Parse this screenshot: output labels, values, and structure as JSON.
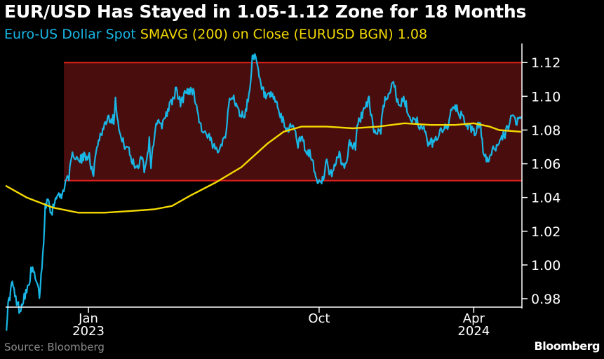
{
  "title": "EUR/USD Has Stayed in 1.05-1.12 Zone for 18 Months",
  "legend": {
    "series1": "Euro-US Dollar Spot",
    "series2": "SMAVG (200) on Close (EURUSD BGN) 1.08"
  },
  "source": "Source: Bloomberg",
  "brand": "Bloomberg",
  "colors": {
    "background": "#000000",
    "spot": "#19b7e6",
    "sma": "#f4d900",
    "band_fill": "#4a0d0d",
    "band_line": "#e0201c",
    "text": "#ffffff"
  },
  "chart_data": {
    "type": "line",
    "ylim": [
      0.975,
      1.128
    ],
    "yticks": [
      0.98,
      1.0,
      1.02,
      1.04,
      1.06,
      1.08,
      1.1,
      1.12
    ],
    "ytick_labels": [
      "0.98",
      "1.00",
      "1.02",
      "1.04",
      "1.06",
      "1.08",
      "1.10",
      "1.12"
    ],
    "xlim": [
      "2022-09-25",
      "2024-05-28"
    ],
    "xticks": [
      {
        "date": "2023-01-01",
        "label": "Jan",
        "label2": "2023"
      },
      {
        "date": "2023-10-01",
        "label": "Oct",
        "label2": ""
      },
      {
        "date": "2024-04-01",
        "label": "Apr",
        "label2": "2024"
      }
    ],
    "band": {
      "low": 1.05,
      "high": 1.12
    },
    "series": [
      {
        "key": "spot",
        "points": [
          [
            "2022-09-26",
            0.964
          ],
          [
            "2022-09-28",
            0.976
          ],
          [
            "2022-10-03",
            0.99
          ],
          [
            "2022-10-06",
            0.981
          ],
          [
            "2022-10-12",
            0.973
          ],
          [
            "2022-10-17",
            0.982
          ],
          [
            "2022-10-21",
            0.985
          ],
          [
            "2022-10-25",
            0.996
          ],
          [
            "2022-10-28",
            0.996
          ],
          [
            "2022-11-01",
            0.988
          ],
          [
            "2022-11-04",
            0.982
          ],
          [
            "2022-11-08",
            1.005
          ],
          [
            "2022-11-11",
            1.035
          ],
          [
            "2022-11-15",
            1.041
          ],
          [
            "2022-11-18",
            1.03
          ],
          [
            "2022-11-24",
            1.042
          ],
          [
            "2022-11-30",
            1.04
          ],
          [
            "2022-12-05",
            1.05
          ],
          [
            "2022-12-09",
            1.053
          ],
          [
            "2022-12-14",
            1.067
          ],
          [
            "2022-12-20",
            1.061
          ],
          [
            "2022-12-27",
            1.064
          ],
          [
            "2023-01-02",
            1.066
          ],
          [
            "2023-01-06",
            1.052
          ],
          [
            "2023-01-12",
            1.073
          ],
          [
            "2023-01-17",
            1.079
          ],
          [
            "2023-01-24",
            1.088
          ],
          [
            "2023-01-31",
            1.086
          ],
          [
            "2023-02-02",
            1.1
          ],
          [
            "2023-02-06",
            1.08
          ],
          [
            "2023-02-10",
            1.073
          ],
          [
            "2023-02-16",
            1.07
          ],
          [
            "2023-02-22",
            1.061
          ],
          [
            "2023-02-28",
            1.058
          ],
          [
            "2023-03-06",
            1.066
          ],
          [
            "2023-03-08",
            1.055
          ],
          [
            "2023-03-14",
            1.073
          ],
          [
            "2023-03-16",
            1.06
          ],
          [
            "2023-03-22",
            1.085
          ],
          [
            "2023-03-28",
            1.082
          ],
          [
            "2023-04-03",
            1.09
          ],
          [
            "2023-04-12",
            1.099
          ],
          [
            "2023-04-14",
            1.104
          ],
          [
            "2023-04-20",
            1.096
          ],
          [
            "2023-04-26",
            1.102
          ],
          [
            "2023-05-03",
            1.105
          ],
          [
            "2023-05-09",
            1.096
          ],
          [
            "2023-05-12",
            1.085
          ],
          [
            "2023-05-18",
            1.078
          ],
          [
            "2023-05-24",
            1.075
          ],
          [
            "2023-05-31",
            1.068
          ],
          [
            "2023-06-06",
            1.071
          ],
          [
            "2023-06-12",
            1.077
          ],
          [
            "2023-06-16",
            1.095
          ],
          [
            "2023-06-22",
            1.1
          ],
          [
            "2023-06-28",
            1.09
          ],
          [
            "2023-07-05",
            1.089
          ],
          [
            "2023-07-10",
            1.1
          ],
          [
            "2023-07-14",
            1.123
          ],
          [
            "2023-07-18",
            1.122
          ],
          [
            "2023-07-24",
            1.106
          ],
          [
            "2023-07-31",
            1.098
          ],
          [
            "2023-08-04",
            1.1
          ],
          [
            "2023-08-10",
            1.098
          ],
          [
            "2023-08-17",
            1.087
          ],
          [
            "2023-08-24",
            1.08
          ],
          [
            "2023-08-31",
            1.084
          ],
          [
            "2023-09-06",
            1.072
          ],
          [
            "2023-09-12",
            1.075
          ],
          [
            "2023-09-15",
            1.066
          ],
          [
            "2023-09-21",
            1.066
          ],
          [
            "2023-09-27",
            1.052
          ],
          [
            "2023-10-03",
            1.047
          ],
          [
            "2023-10-10",
            1.061
          ],
          [
            "2023-10-13",
            1.052
          ],
          [
            "2023-10-19",
            1.058
          ],
          [
            "2023-10-24",
            1.066
          ],
          [
            "2023-10-31",
            1.057
          ],
          [
            "2023-11-06",
            1.072
          ],
          [
            "2023-11-13",
            1.07
          ],
          [
            "2023-11-16",
            1.085
          ],
          [
            "2023-11-22",
            1.09
          ],
          [
            "2023-11-29",
            1.098
          ],
          [
            "2023-12-01",
            1.088
          ],
          [
            "2023-12-07",
            1.078
          ],
          [
            "2023-12-13",
            1.08
          ],
          [
            "2023-12-15",
            1.093
          ],
          [
            "2023-12-22",
            1.102
          ],
          [
            "2023-12-28",
            1.11
          ],
          [
            "2024-01-03",
            1.093
          ],
          [
            "2024-01-10",
            1.098
          ],
          [
            "2024-01-16",
            1.087
          ],
          [
            "2024-01-23",
            1.087
          ],
          [
            "2024-01-29",
            1.082
          ],
          [
            "2024-02-02",
            1.08
          ],
          [
            "2024-02-06",
            1.073
          ],
          [
            "2024-02-14",
            1.072
          ],
          [
            "2024-02-22",
            1.081
          ],
          [
            "2024-02-29",
            1.081
          ],
          [
            "2024-03-07",
            1.093
          ],
          [
            "2024-03-12",
            1.092
          ],
          [
            "2024-03-19",
            1.087
          ],
          [
            "2024-03-26",
            1.082
          ],
          [
            "2024-04-02",
            1.078
          ],
          [
            "2024-04-09",
            1.086
          ],
          [
            "2024-04-12",
            1.065
          ],
          [
            "2024-04-16",
            1.062
          ],
          [
            "2024-04-22",
            1.066
          ],
          [
            "2024-04-29",
            1.072
          ],
          [
            "2024-05-03",
            1.076
          ],
          [
            "2024-05-09",
            1.078
          ],
          [
            "2024-05-15",
            1.088
          ],
          [
            "2024-05-21",
            1.086
          ],
          [
            "2024-05-24",
            1.085
          ],
          [
            "2024-05-27",
            1.088
          ]
        ]
      },
      {
        "key": "sma",
        "points": [
          [
            "2022-09-25",
            1.047
          ],
          [
            "2022-10-20",
            1.04
          ],
          [
            "2022-11-20",
            1.034
          ],
          [
            "2022-12-20",
            1.031
          ],
          [
            "2023-01-20",
            1.031
          ],
          [
            "2023-02-20",
            1.032
          ],
          [
            "2023-03-20",
            1.033
          ],
          [
            "2023-04-10",
            1.035
          ],
          [
            "2023-05-01",
            1.041
          ],
          [
            "2023-06-01",
            1.049
          ],
          [
            "2023-07-01",
            1.058
          ],
          [
            "2023-08-01",
            1.072
          ],
          [
            "2023-08-20",
            1.079
          ],
          [
            "2023-09-10",
            1.082
          ],
          [
            "2023-10-10",
            1.082
          ],
          [
            "2023-11-10",
            1.081
          ],
          [
            "2023-12-10",
            1.082
          ],
          [
            "2024-01-10",
            1.084
          ],
          [
            "2024-02-10",
            1.083
          ],
          [
            "2024-03-10",
            1.083
          ],
          [
            "2024-04-01",
            1.084
          ],
          [
            "2024-04-20",
            1.082
          ],
          [
            "2024-05-01",
            1.08
          ],
          [
            "2024-05-27",
            1.079
          ]
        ]
      }
    ]
  }
}
